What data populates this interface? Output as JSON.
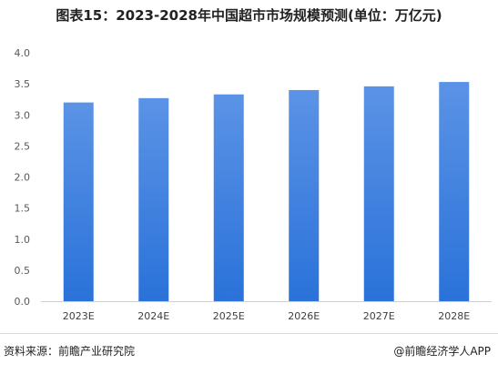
{
  "title": "图表15：2023-2028年中国超市市场规模预测(单位：万亿元)",
  "footer": {
    "source": "资料来源：前瞻产业研究院",
    "credit": "@前瞻经济学人APP"
  },
  "colors": {
    "bar_top": "#5b93e6",
    "bar_bottom": "#2a72d9",
    "axis": "#d0d0d0"
  },
  "chart_data": {
    "type": "bar",
    "categories": [
      "2023E",
      "2024E",
      "2025E",
      "2026E",
      "2027E",
      "2028E"
    ],
    "values": [
      3.2,
      3.27,
      3.33,
      3.4,
      3.46,
      3.53
    ],
    "ylim": [
      0,
      4.0
    ],
    "yticks": [
      "0.0",
      "0.5",
      "1.0",
      "1.5",
      "2.0",
      "2.5",
      "3.0",
      "3.5",
      "4.0"
    ],
    "xlabel": "",
    "ylabel": "",
    "grid": false,
    "legend": "none"
  }
}
